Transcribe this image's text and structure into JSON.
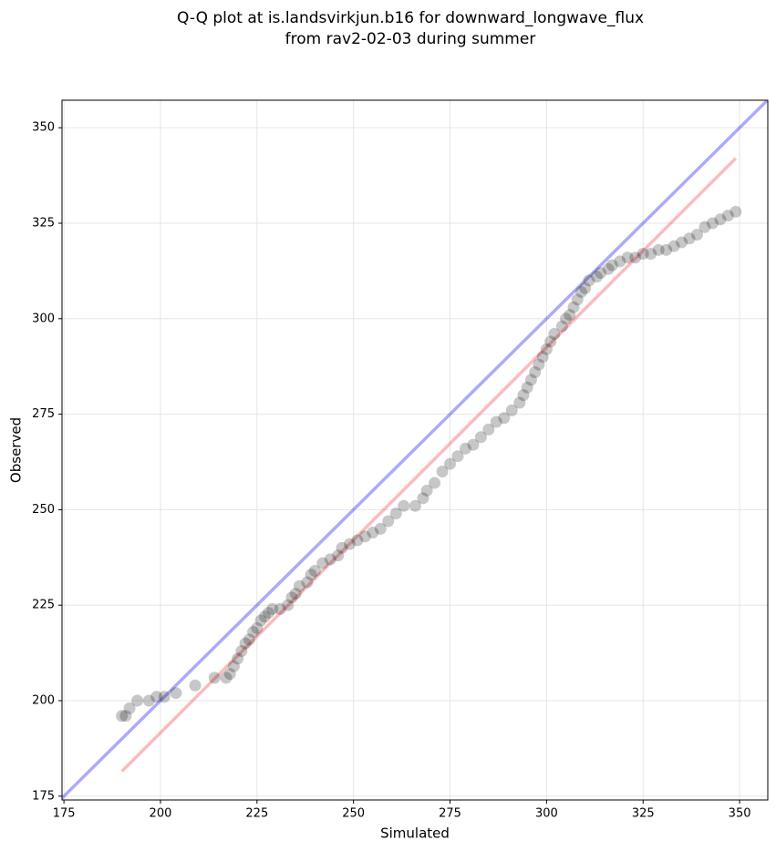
{
  "chart_data": {
    "type": "scatter",
    "title": [
      "Q-Q plot at is.landsvirkjun.b16 for downward_longwave_flux",
      "from rav2-02-03 during summer"
    ],
    "x_label": "Simulated",
    "y_label": "Observed",
    "xlim": [
      174.5,
      357.3
    ],
    "ylim": [
      174.0,
      357.2
    ],
    "xticks": [
      175,
      200,
      225,
      250,
      275,
      300,
      325,
      350
    ],
    "yticks": [
      175,
      200,
      225,
      250,
      275,
      300,
      325,
      350
    ],
    "grid": true,
    "points": {
      "color": "#000000",
      "x": [
        190,
        191,
        192,
        194,
        197,
        199,
        201,
        204,
        209,
        214,
        217,
        218,
        219,
        220,
        221,
        222,
        223,
        224,
        225,
        226,
        227,
        228,
        229,
        231,
        233,
        234,
        235,
        236,
        238,
        239,
        240,
        242,
        244,
        246,
        247,
        249,
        251,
        253,
        255,
        257,
        259,
        261,
        263,
        266,
        268,
        269,
        271,
        273,
        275,
        277,
        279,
        281,
        283,
        285,
        287,
        289,
        291,
        293,
        294,
        295,
        296,
        297,
        298,
        299,
        300,
        301,
        302,
        304,
        305,
        306,
        307,
        308,
        309,
        310,
        311,
        313,
        314,
        316,
        317,
        319,
        321,
        323,
        325,
        327,
        329,
        331,
        333,
        335,
        337,
        339,
        341,
        343,
        345,
        347,
        349
      ],
      "y": [
        196,
        196,
        198,
        200,
        200,
        201,
        201,
        202,
        204,
        206,
        206,
        207,
        209,
        211,
        213,
        215,
        216,
        218,
        219,
        221,
        222,
        223,
        224,
        224,
        225,
        227,
        228,
        230,
        231,
        233,
        234,
        236,
        237,
        238,
        240,
        241,
        242,
        243,
        244,
        245,
        247,
        249,
        251,
        251,
        253,
        255,
        257,
        260,
        262,
        264,
        266,
        267,
        269,
        271,
        273,
        274,
        276,
        278,
        280,
        282,
        284,
        286,
        288,
        290,
        292,
        294,
        296,
        298,
        300,
        301,
        303,
        305,
        307,
        308,
        310,
        311,
        312,
        313,
        314,
        315,
        316,
        316,
        317,
        317,
        318,
        318,
        319,
        320,
        321,
        322,
        324,
        325,
        326,
        327,
        328
      ]
    },
    "reference_lines": [
      {
        "color": "#0000ee",
        "x": [
          174,
          358
        ],
        "y": [
          174,
          358
        ]
      },
      {
        "color": "#ee3333",
        "x": [
          190,
          349
        ],
        "y": [
          181.5,
          342
        ]
      }
    ]
  }
}
